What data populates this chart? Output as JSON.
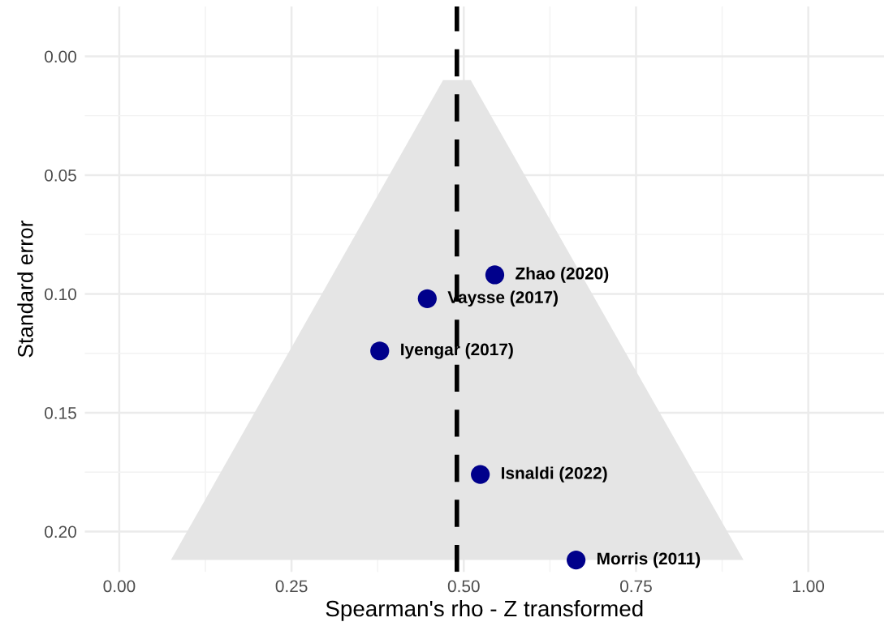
{
  "chart_data": {
    "type": "scatter",
    "xlabel": "Spearman's rho - Z transformed",
    "ylabel": "Standard error",
    "x": [
      0.545,
      0.447,
      0.378,
      0.524,
      0.663
    ],
    "series": [
      {
        "type": "area",
        "color": "#e5e5e5",
        "x": [
          0.075,
          0.47,
          0.51,
          0.906
        ],
        "values": [
          0.212,
          0.01,
          0.01,
          0.212
        ]
      },
      {
        "color": "#00008b",
        "marker": "circle",
        "values": [
          0.092,
          0.102,
          0.124,
          0.176,
          0.212
        ]
      }
    ],
    "annotations": [
      {
        "text": "Zhao (2020)",
        "x": 0.545,
        "y": 0.092
      },
      {
        "text": "Vaysse (2017)",
        "x": 0.447,
        "y": 0.102
      },
      {
        "text": "Iyengar (2017)",
        "x": 0.378,
        "y": 0.124
      },
      {
        "text": "Isnaldi (2022)",
        "x": 0.524,
        "y": 0.176
      },
      {
        "text": "Morris (2011)",
        "x": 0.663,
        "y": 0.212
      }
    ],
    "ref_lines": [
      {
        "axis": "x",
        "value": 0.49,
        "color": "#000000",
        "line_style": "dashed"
      }
    ],
    "xlim": [
      -0.05,
      1.11
    ],
    "ylim": [
      0.217,
      -0.021
    ],
    "xticks": [
      {
        "value": 0,
        "label": "0.00"
      },
      0.25,
      {
        "value": 0.5,
        "label": "0.50"
      },
      0.75,
      {
        "value": 1,
        "label": "1.00"
      }
    ],
    "yticks": [
      {
        "value": 0,
        "label": "0.00"
      },
      0.05,
      {
        "value": 0.1,
        "label": "0.10"
      },
      0.15,
      {
        "value": 0.2,
        "label": "0.20"
      }
    ],
    "grid": true
  }
}
